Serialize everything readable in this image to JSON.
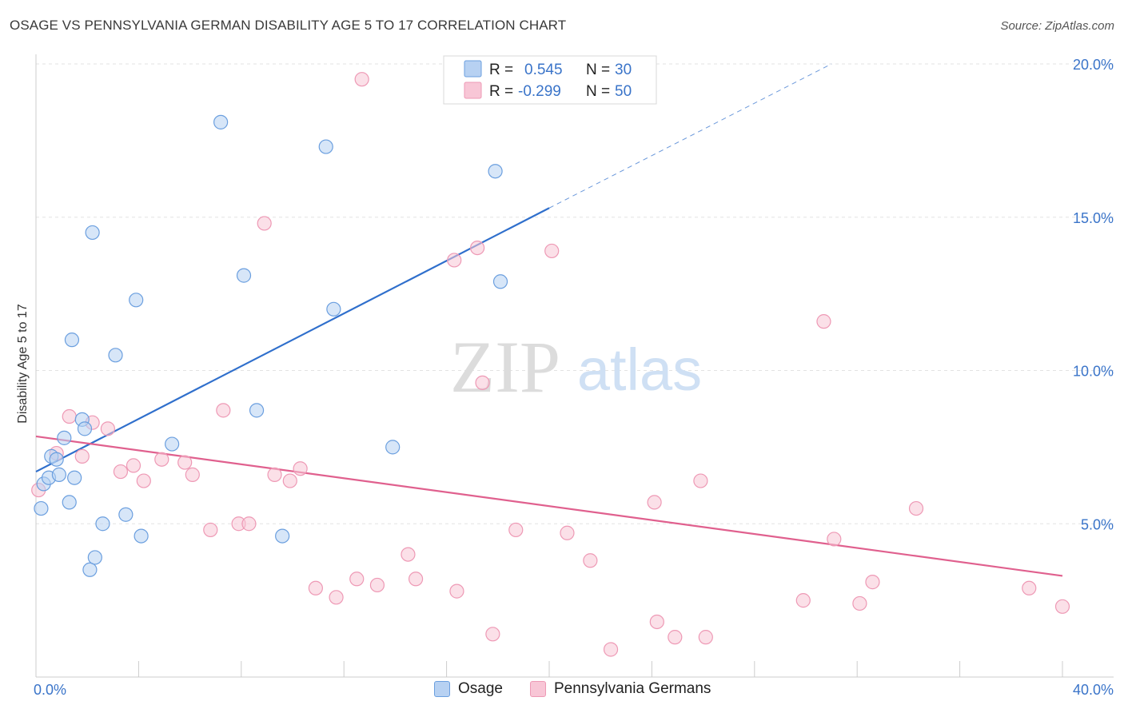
{
  "title": "OSAGE VS PENNSYLVANIA GERMAN DISABILITY AGE 5 TO 17 CORRELATION CHART",
  "source": "Source: ZipAtlas.com",
  "watermark": {
    "zip": "ZIP",
    "atlas": "atlas"
  },
  "chart_data": {
    "type": "scatter",
    "xlabel": "",
    "ylabel": "Disability Age 5 to 17",
    "xlim": [
      0,
      40
    ],
    "ylim": [
      0,
      20
    ],
    "x_ticks": [
      {
        "value": 0,
        "label": "0.0%"
      },
      {
        "value": 40,
        "label": "40.0%"
      }
    ],
    "y_ticks": [
      {
        "value": 5,
        "label": "5.0%"
      },
      {
        "value": 10,
        "label": "10.0%"
      },
      {
        "value": 15,
        "label": "15.0%"
      },
      {
        "value": 20,
        "label": "20.0%"
      }
    ],
    "grid": true,
    "legend_position": "top-center",
    "series": [
      {
        "name": "Osage",
        "color": "#6b9fdf",
        "fill": "#b7d1f2",
        "line_color": "#2f6fcc",
        "R": "0.545",
        "N": "30",
        "trend": {
          "x0": 0.0,
          "y0": 6.7,
          "x1": 20.0,
          "y1": 15.3,
          "dash_to_x": 31.0,
          "dash_to_y": 20.0
        },
        "points": [
          [
            0.2,
            5.5
          ],
          [
            0.3,
            6.3
          ],
          [
            0.5,
            6.5
          ],
          [
            0.6,
            7.2
          ],
          [
            0.8,
            7.1
          ],
          [
            0.9,
            6.6
          ],
          [
            1.1,
            7.8
          ],
          [
            1.3,
            5.7
          ],
          [
            1.5,
            6.5
          ],
          [
            1.4,
            11.0
          ],
          [
            1.8,
            8.4
          ],
          [
            1.9,
            8.1
          ],
          [
            2.1,
            3.5
          ],
          [
            2.3,
            3.9
          ],
          [
            2.6,
            5.0
          ],
          [
            2.2,
            14.5
          ],
          [
            3.1,
            10.5
          ],
          [
            3.5,
            5.3
          ],
          [
            3.9,
            12.3
          ],
          [
            4.1,
            4.6
          ],
          [
            5.3,
            7.6
          ],
          [
            7.2,
            18.1
          ],
          [
            8.1,
            13.1
          ],
          [
            8.6,
            8.7
          ],
          [
            9.6,
            4.6
          ],
          [
            11.3,
            17.3
          ],
          [
            11.6,
            12.0
          ],
          [
            13.9,
            7.5
          ],
          [
            17.9,
            16.5
          ],
          [
            18.1,
            12.9
          ]
        ]
      },
      {
        "name": "Pennsylvania Germans",
        "color": "#ee99b5",
        "fill": "#f8c6d6",
        "line_color": "#e0608e",
        "R": "-0.299",
        "N": "50",
        "trend": {
          "x0": 0.0,
          "y0": 7.85,
          "x1": 40.0,
          "y1": 3.3
        },
        "points": [
          [
            0.1,
            6.1
          ],
          [
            0.8,
            7.3
          ],
          [
            1.3,
            8.5
          ],
          [
            1.8,
            7.2
          ],
          [
            2.2,
            8.3
          ],
          [
            2.8,
            8.1
          ],
          [
            3.3,
            6.7
          ],
          [
            3.8,
            6.9
          ],
          [
            4.2,
            6.4
          ],
          [
            4.9,
            7.1
          ],
          [
            5.8,
            7.0
          ],
          [
            6.1,
            6.6
          ],
          [
            6.8,
            4.8
          ],
          [
            7.3,
            8.7
          ],
          [
            7.9,
            5.0
          ],
          [
            8.3,
            5.0
          ],
          [
            8.9,
            14.8
          ],
          [
            9.3,
            6.6
          ],
          [
            9.9,
            6.4
          ],
          [
            10.3,
            6.8
          ],
          [
            10.9,
            2.9
          ],
          [
            11.7,
            2.6
          ],
          [
            12.5,
            3.2
          ],
          [
            12.7,
            19.5
          ],
          [
            13.3,
            3.0
          ],
          [
            14.5,
            4.0
          ],
          [
            14.8,
            3.2
          ],
          [
            16.3,
            13.6
          ],
          [
            16.4,
            2.8
          ],
          [
            17.2,
            14.0
          ],
          [
            17.4,
            9.6
          ],
          [
            17.8,
            1.4
          ],
          [
            18.7,
            4.8
          ],
          [
            20.1,
            13.9
          ],
          [
            20.7,
            4.7
          ],
          [
            21.6,
            3.8
          ],
          [
            22.4,
            0.9
          ],
          [
            24.1,
            5.7
          ],
          [
            24.2,
            1.8
          ],
          [
            24.9,
            1.3
          ],
          [
            25.9,
            6.4
          ],
          [
            26.1,
            1.3
          ],
          [
            29.9,
            2.5
          ],
          [
            30.7,
            11.6
          ],
          [
            31.1,
            4.5
          ],
          [
            32.1,
            2.4
          ],
          [
            32.6,
            3.1
          ],
          [
            34.3,
            5.5
          ],
          [
            38.7,
            2.9
          ],
          [
            40.0,
            2.3
          ]
        ]
      }
    ]
  },
  "legend": {
    "r_label": "R =",
    "n_label": "N ="
  }
}
